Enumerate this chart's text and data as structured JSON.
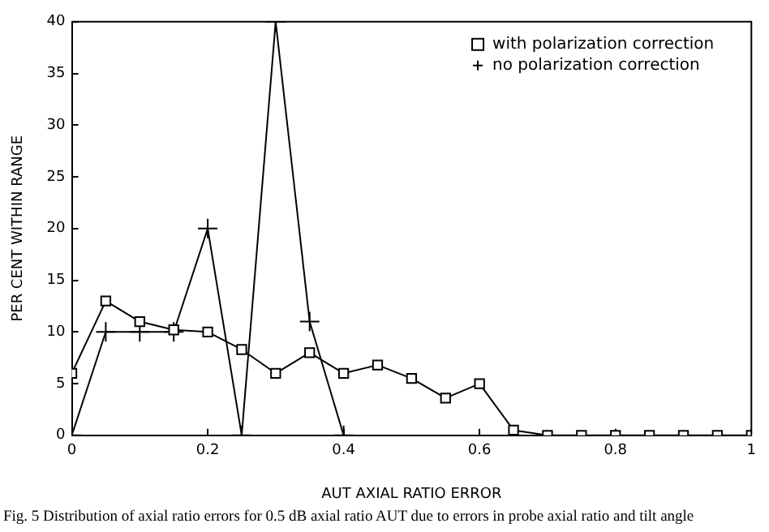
{
  "chart_data": {
    "type": "line",
    "xlabel": "AUT AXIAL RATIO ERROR",
    "ylabel": "PER CENT WITHIN RANGE",
    "xlim": [
      0,
      1
    ],
    "xticks": [
      0,
      0.2,
      0.4,
      0.6,
      0.8,
      1
    ],
    "ylim": [
      0,
      40
    ],
    "yticks": [
      0,
      5,
      10,
      15,
      20,
      25,
      30,
      35,
      40
    ],
    "grid": false,
    "legend": "top right",
    "series": [
      {
        "name": "with polarization correction",
        "color": "#000000",
        "marker": "square",
        "x": [
          0,
          0.05,
          0.1,
          0.15,
          0.2,
          0.25,
          0.3,
          0.35,
          0.4,
          0.45,
          0.5,
          0.55,
          0.6,
          0.65,
          0.7,
          0.75,
          0.8,
          0.85,
          0.9,
          0.95,
          1
        ],
        "values": [
          6,
          13,
          11,
          10.2,
          10,
          8.3,
          6,
          8,
          6,
          6.8,
          5.5,
          3.6,
          5,
          0.5,
          0,
          0,
          0,
          0,
          0,
          0,
          0
        ]
      },
      {
        "name": "no polarization correction",
        "color": "#000000",
        "marker": "cross",
        "x": [
          0,
          0.05,
          0.1,
          0.15,
          0.2,
          0.25,
          0.3,
          0.35,
          0.4
        ],
        "values": [
          0,
          10,
          10,
          10,
          20,
          0,
          40,
          11,
          0
        ]
      }
    ],
    "annotations": [
      "Fig. 5   Distribution of axial ratio errors for 0.5 dB axial ratio AUT due to errors in probe axial ratio and tilt angle"
    ]
  }
}
